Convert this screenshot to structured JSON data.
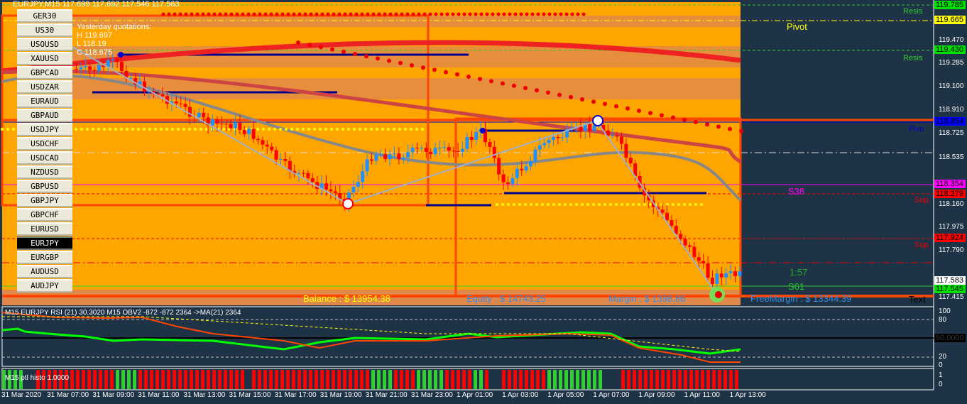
{
  "header": {
    "ticker": "EURJPY,M15 117.699 117.692 117.546 117.563",
    "yesterday_label": "Yesterday quotations:",
    "high": "H 119.697",
    "low": "L 118.19",
    "close": "C 118.675"
  },
  "symbol_buttons": [
    "GER30",
    "US30",
    "USOUSD",
    "XAUUSD",
    "GBPCAD",
    "USDZAR",
    "EURAUD",
    "GBPAUD",
    "USDJPY",
    "USDCHF",
    "USDCAD",
    "NZDUSD",
    "GBPUSD",
    "GBPJPY",
    "GBPCHF",
    "EURUSD",
    "EURJPY",
    "EURGBP",
    "AUDUSD",
    "AUDJPY"
  ],
  "selected_symbol": "EURJPY",
  "levels": {
    "resistance1": "Resis",
    "resistance2": "Resis",
    "pivot_top": "Pivot",
    "pivot": "Pivo",
    "support1": "Sup",
    "support2": "Sup",
    "s38": "S38",
    "s61": "S61",
    "ratio": "1:57",
    "text": "Text"
  },
  "account": {
    "balance": "Balance : $ 13954.38",
    "equity": "Equity : $ 14743.25",
    "margin": "Margin : $ 1398.86",
    "free_margin": "FreeMargin : $ 13344.39"
  },
  "price_axis": {
    "ticks": [
      "119.470",
      "119.285",
      "119.100",
      "118.910",
      "118.725",
      "118.535",
      "118.160",
      "117.975",
      "117.790",
      "117.415"
    ],
    "tags": [
      {
        "v": "119.785",
        "c": "#00e000"
      },
      {
        "v": "119.665",
        "c": "#ffff00"
      },
      {
        "v": "119.430",
        "c": "#00e000"
      },
      {
        "v": "118.854",
        "c": "#0000ff"
      },
      {
        "v": "118.354",
        "c": "#ff00ff"
      },
      {
        "v": "118.279",
        "c": "#ff0000"
      },
      {
        "v": "117.924",
        "c": "#ff0000"
      },
      {
        "v": "117.583",
        "c": "#ffffff"
      },
      {
        "v": "117.545",
        "c": "#00e000"
      }
    ]
  },
  "rsi_pane": {
    "label": "M15 EURJPY RSI (21) 30.3020  M15 OBV2 -872 -872 2364  ->MA(21) 2364",
    "ticks": [
      "100",
      "80",
      "20",
      "0"
    ],
    "level_tag": "50.0000"
  },
  "histo_pane": {
    "label": "M15 ptl histo 1.0000",
    "ticks": [
      "1",
      "0"
    ]
  },
  "time_axis": [
    "31 Mar 2020",
    "31 Mar 07:00",
    "31 Mar 09:00",
    "31 Mar 11:00",
    "31 Mar 13:00",
    "31 Mar 15:00",
    "31 Mar 17:00",
    "31 Mar 19:00",
    "31 Mar 21:00",
    "31 Mar 23:00",
    "1 Apr 01:00",
    "1 Apr 03:00",
    "1 Apr 05:00",
    "1 Apr 07:00",
    "1 Apr 09:00",
    "1 Apr 11:00",
    "1 Apr 13:00"
  ],
  "colors": {
    "chart_bg": "#ffa500",
    "panel_bg": "#1f3346",
    "bull": "#1e90ff",
    "bear": "#ff0000",
    "rsi": "#00ff00",
    "obv": "#ff4500"
  }
}
